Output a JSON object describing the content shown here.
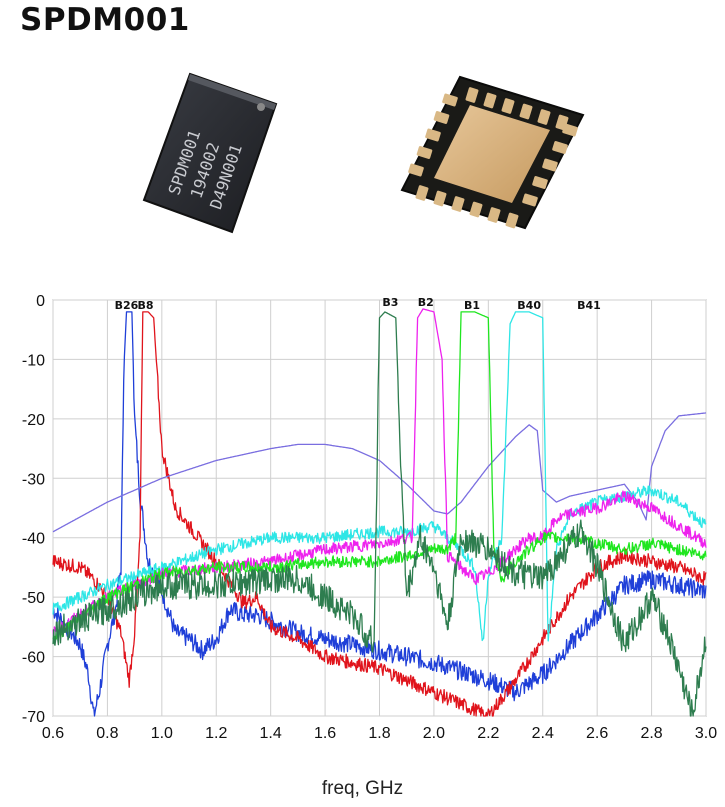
{
  "page": {
    "title": "SPDM001"
  },
  "photos": {
    "chip_top": {
      "icon": "chip-top-icon",
      "marking": [
        "SPDM001",
        "194002",
        "D49N001"
      ]
    },
    "chip_bottom": {
      "icon": "chip-bottom-pads-icon"
    }
  },
  "chart_data": {
    "type": "line",
    "title": "",
    "xlabel": "freq, GHz",
    "ylabel": "",
    "xlim": [
      0.6,
      3.0
    ],
    "ylim": [
      -70,
      0
    ],
    "grid": true,
    "xticks": [
      0.6,
      0.8,
      1.0,
      1.2,
      1.4,
      1.6,
      1.8,
      2.0,
      2.2,
      2.4,
      2.6,
      2.8,
      3.0
    ],
    "yticks": [
      0,
      -10,
      -20,
      -30,
      -40,
      -50,
      -60,
      -70
    ],
    "annotations": [
      {
        "text": "B26",
        "x": 0.87,
        "y": -1.5
      },
      {
        "text": "B8",
        "x": 0.94,
        "y": -1.5
      },
      {
        "text": "B3",
        "x": 1.84,
        "y": -1.0
      },
      {
        "text": "B2",
        "x": 1.97,
        "y": -1.0
      },
      {
        "text": "B1",
        "x": 2.14,
        "y": -1.5
      },
      {
        "text": "B40",
        "x": 2.35,
        "y": -1.5
      },
      {
        "text": "B41",
        "x": 2.57,
        "y": -1.5
      }
    ],
    "series": [
      {
        "color": "#1f3fd8",
        "noise": 1.6,
        "x": [
          0.6,
          0.65,
          0.7,
          0.73,
          0.75,
          0.77,
          0.8,
          0.83,
          0.85,
          0.86,
          0.87,
          0.89,
          0.9,
          0.92,
          0.95,
          1.0,
          1.05,
          1.1,
          1.15,
          1.2,
          1.25,
          1.3,
          1.35,
          1.4,
          1.5,
          1.6,
          1.8,
          2.0,
          2.2,
          2.3,
          2.4,
          2.5,
          2.6,
          2.7,
          2.8,
          2.9,
          3.0
        ],
        "y": [
          -52,
          -55,
          -58,
          -63,
          -70,
          -66,
          -58,
          -52,
          -45,
          -12,
          -2,
          -2,
          -20,
          -33,
          -44,
          -49,
          -56,
          -57,
          -59,
          -57,
          -52,
          -53,
          -53,
          -54,
          -56,
          -57,
          -59,
          -61,
          -64,
          -66,
          -63,
          -58,
          -53,
          -48,
          -47,
          -48,
          -49
        ]
      },
      {
        "color": "#e0141c",
        "noise": 1.2,
        "x": [
          0.6,
          0.7,
          0.75,
          0.8,
          0.85,
          0.88,
          0.9,
          0.92,
          0.93,
          0.95,
          0.97,
          1.0,
          1.05,
          1.1,
          1.2,
          1.3,
          1.35,
          1.4,
          1.5,
          1.6,
          1.8,
          2.0,
          2.1,
          2.2,
          2.3,
          2.4,
          2.5,
          2.6,
          2.7,
          2.8,
          2.9,
          3.0
        ],
        "y": [
          -44,
          -45,
          -47,
          -50,
          -56,
          -64,
          -56,
          -40,
          -2,
          -2,
          -3,
          -25,
          -35,
          -38,
          -44,
          -51,
          -50,
          -55,
          -57,
          -60,
          -62,
          -66,
          -68,
          -70,
          -64,
          -57,
          -50,
          -45,
          -43,
          -44,
          -45,
          -47
        ]
      },
      {
        "color": "#7a6ee0",
        "noise": 0,
        "x": [
          0.6,
          0.8,
          1.0,
          1.2,
          1.4,
          1.5,
          1.6,
          1.7,
          1.8,
          1.9,
          2.0,
          2.05,
          2.1,
          2.2,
          2.3,
          2.35,
          2.38,
          2.4,
          2.45,
          2.5,
          2.6,
          2.7,
          2.75,
          2.78,
          2.8,
          2.85,
          2.9,
          3.0
        ],
        "y": [
          -39,
          -34,
          -30,
          -27,
          -25,
          -24.3,
          -24.3,
          -25,
          -27,
          -31,
          -35.5,
          -36,
          -34,
          -28,
          -23,
          -21,
          -22,
          -32,
          -34,
          -33,
          -32,
          -31,
          -34,
          -37,
          -28,
          -22,
          -19.5,
          -19
        ]
      },
      {
        "color": "#2ee6e6",
        "noise": 1.0,
        "x": [
          0.6,
          0.8,
          1.0,
          1.2,
          1.4,
          1.6,
          1.8,
          1.9,
          2.0,
          2.05,
          2.1,
          2.15,
          2.18,
          2.2,
          2.25,
          2.28,
          2.3,
          2.35,
          2.4,
          2.42,
          2.45,
          2.5,
          2.6,
          2.7,
          2.8,
          2.9,
          3.0
        ],
        "y": [
          -52,
          -48,
          -45,
          -42,
          -40,
          -40,
          -39,
          -39,
          -38,
          -40,
          -42,
          -45,
          -58,
          -46,
          -40,
          -4,
          -2,
          -2,
          -3,
          -58,
          -42,
          -36,
          -34,
          -33,
          -32,
          -34,
          -38
        ]
      },
      {
        "color": "#ee22ee",
        "noise": 1.0,
        "x": [
          0.6,
          0.8,
          1.0,
          1.2,
          1.4,
          1.6,
          1.8,
          1.9,
          1.92,
          1.94,
          1.96,
          2.0,
          2.03,
          2.05,
          2.1,
          2.15,
          2.2,
          2.25,
          2.3,
          2.35,
          2.4,
          2.45,
          2.5,
          2.6,
          2.7,
          2.8,
          2.9,
          3.0
        ],
        "y": [
          -56,
          -50,
          -46,
          -45,
          -44,
          -42,
          -41,
          -40,
          -40,
          -3,
          -1.5,
          -2,
          -10,
          -43,
          -45,
          -47,
          -46,
          -44,
          -42,
          -40,
          -40,
          -37,
          -36,
          -35,
          -33,
          -35,
          -38,
          -41
        ]
      },
      {
        "color": "#1fe61f",
        "noise": 1.0,
        "x": [
          0.6,
          0.8,
          1.0,
          1.2,
          1.4,
          1.6,
          1.8,
          1.9,
          2.0,
          2.05,
          2.08,
          2.1,
          2.15,
          2.2,
          2.22,
          2.25,
          2.3,
          2.4,
          2.5,
          2.6,
          2.7,
          2.8,
          2.9,
          3.0
        ],
        "y": [
          -57,
          -50,
          -46,
          -45,
          -45,
          -44,
          -44,
          -43,
          -42,
          -42,
          -40,
          -2,
          -2,
          -3,
          -42,
          -47,
          -44,
          -40,
          -40,
          -41,
          -42,
          -41,
          -42,
          -43
        ]
      },
      {
        "color": "#2e7d4f",
        "noise": 2.4,
        "x": [
          0.6,
          0.8,
          1.0,
          1.2,
          1.4,
          1.5,
          1.6,
          1.7,
          1.78,
          1.8,
          1.82,
          1.86,
          1.88,
          1.9,
          1.95,
          2.0,
          2.05,
          2.1,
          2.2,
          2.3,
          2.4,
          2.5,
          2.55,
          2.6,
          2.7,
          2.8,
          2.85,
          2.9,
          2.95,
          3.0
        ],
        "y": [
          -56,
          -52,
          -48,
          -48,
          -47,
          -47,
          -50,
          -53,
          -58,
          -3,
          -2,
          -3,
          -30,
          -50,
          -40,
          -45,
          -55,
          -40,
          -42,
          -46,
          -47,
          -41,
          -39,
          -45,
          -58,
          -50,
          -55,
          -62,
          -70,
          -57
        ]
      }
    ]
  }
}
